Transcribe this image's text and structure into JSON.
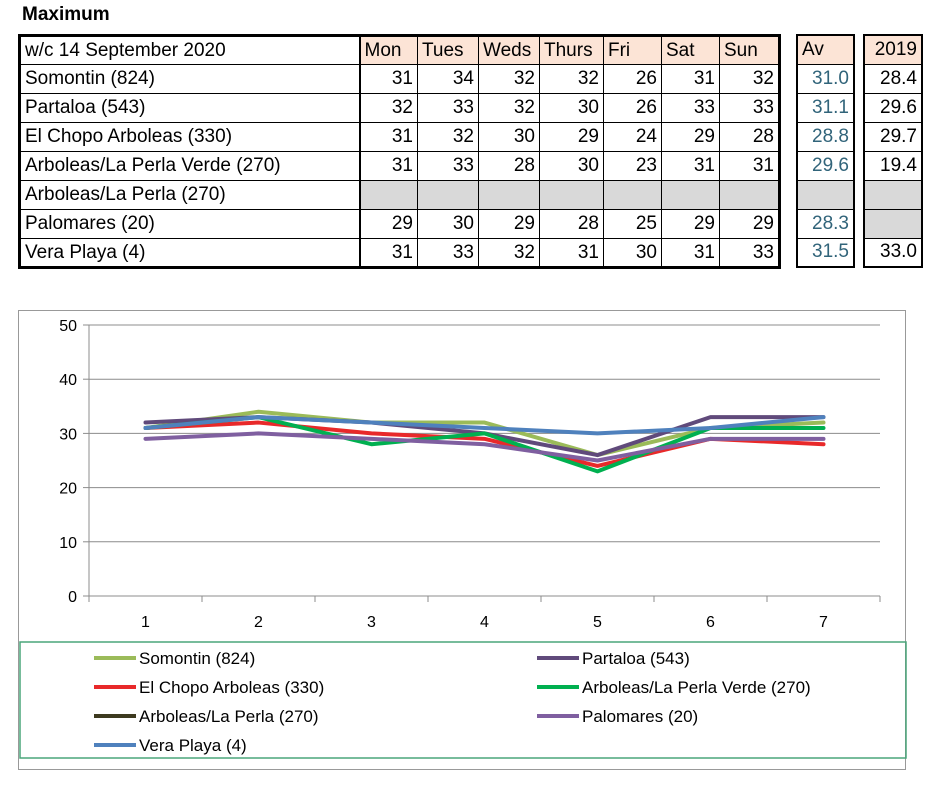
{
  "title": "Maximum",
  "table": {
    "header_label": "w/c  14 September  2020",
    "days": [
      "Mon",
      "Tues",
      "Weds",
      "Thurs",
      "Fri",
      "Sat",
      "Sun"
    ],
    "av_header": "Av",
    "y2019_header": "2019",
    "rows": [
      {
        "label": "Somontin (824)",
        "values": [
          "31",
          "34",
          "32",
          "32",
          "26",
          "31",
          "32"
        ],
        "av": "31.0",
        "y2019": "28.4"
      },
      {
        "label": "Partaloa (543)",
        "values": [
          "32",
          "33",
          "32",
          "30",
          "26",
          "33",
          "33"
        ],
        "av": "31.1",
        "y2019": "29.6"
      },
      {
        "label": "El Chopo  Arboleas (330)",
        "values": [
          "31",
          "32",
          "30",
          "29",
          "24",
          "29",
          "28"
        ],
        "av": "28.8",
        "y2019": "29.7"
      },
      {
        "label": "Arboleas/La Perla Verde (270)",
        "values": [
          "31",
          "33",
          "28",
          "30",
          "23",
          "31",
          "31"
        ],
        "av": "29.6",
        "y2019": "19.4"
      },
      {
        "label": "Arboleas/La Perla (270)",
        "values": [
          "",
          "",
          "",
          "",
          "",
          "",
          ""
        ],
        "av": "",
        "y2019": ""
      },
      {
        "label": "Palomares (20)",
        "values": [
          "29",
          "30",
          "29",
          "28",
          "25",
          "29",
          "29"
        ],
        "av": "28.3",
        "y2019": ""
      },
      {
        "label": "Vera Playa (4)",
        "values": [
          "31",
          "33",
          "32",
          "31",
          "30",
          "31",
          "33"
        ],
        "av": "31.5",
        "y2019": "33.0"
      }
    ]
  },
  "chart_data": {
    "type": "line",
    "x": [
      1,
      2,
      3,
      4,
      5,
      6,
      7
    ],
    "x_tick_labels": [
      "1",
      "2",
      "3",
      "4",
      "5",
      "6",
      "7"
    ],
    "ylim": [
      0,
      50
    ],
    "y_ticks": [
      0,
      10,
      20,
      30,
      40,
      50
    ],
    "y_tick_labels": [
      "0",
      "10",
      "20",
      "30",
      "40",
      "50"
    ],
    "grid": "horizontal",
    "legend_position": "bottom",
    "series": [
      {
        "name": "Somontin (824)",
        "color": "#9bbb59",
        "values": [
          31,
          34,
          32,
          32,
          26,
          31,
          32
        ]
      },
      {
        "name": "Partaloa (543)",
        "color": "#604a7b",
        "values": [
          32,
          33,
          32,
          30,
          26,
          33,
          33
        ]
      },
      {
        "name": "El Chopo  Arboleas (330)",
        "color": "#e8292a",
        "values": [
          31,
          32,
          30,
          29,
          24,
          29,
          28
        ]
      },
      {
        "name": "Arboleas/La Perla Verde (270)",
        "color": "#00b050",
        "values": [
          31,
          33,
          28,
          30,
          23,
          31,
          31
        ]
      },
      {
        "name": "Arboleas/La Perla (270)",
        "color": "#3d3a1f",
        "values": [
          null,
          null,
          null,
          null,
          null,
          null,
          null
        ]
      },
      {
        "name": "Palomares (20)",
        "color": "#7f5fa0",
        "values": [
          29,
          30,
          29,
          28,
          25,
          29,
          29
        ]
      },
      {
        "name": "Vera Playa (4)",
        "color": "#4f81bd",
        "values": [
          31,
          33,
          32,
          31,
          30,
          31,
          33
        ]
      }
    ]
  }
}
